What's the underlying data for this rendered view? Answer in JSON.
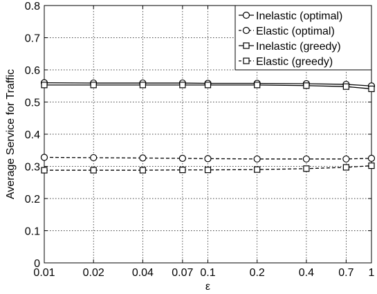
{
  "chart_data": {
    "type": "line",
    "title": "",
    "xlabel": "ε",
    "ylabel": "Average Service for Traffic",
    "x": [
      0.01,
      0.02,
      0.04,
      0.07,
      0.1,
      0.2,
      0.4,
      0.7,
      1
    ],
    "x_tick_labels": [
      "0.01",
      "0.02",
      "0.04",
      "0.07",
      "0.1",
      "0.2",
      "0.4",
      "0.7",
      "1"
    ],
    "y_ticks": [
      0,
      0.1,
      0.2,
      0.3,
      0.4,
      0.5,
      0.6,
      0.7,
      0.8
    ],
    "y_tick_labels": [
      "0",
      "0.1",
      "0.2",
      "0.3",
      "0.4",
      "0.5",
      "0.6",
      "0.7",
      "0.8"
    ],
    "ylim": [
      0,
      0.8
    ],
    "x_scale": "log",
    "grid": true,
    "legend_position": "top-right",
    "series": [
      {
        "name": "Inelastic (optimal)",
        "marker": "circle",
        "line": "solid",
        "values": [
          0.56,
          0.559,
          0.559,
          0.559,
          0.558,
          0.558,
          0.557,
          0.555,
          0.55
        ]
      },
      {
        "name": "Elastic (optimal)",
        "marker": "circle",
        "line": "dashed",
        "values": [
          0.328,
          0.327,
          0.326,
          0.325,
          0.324,
          0.323,
          0.323,
          0.323,
          0.325
        ]
      },
      {
        "name": "Inelastic (greedy)",
        "marker": "square",
        "line": "solid",
        "values": [
          0.553,
          0.553,
          0.553,
          0.553,
          0.553,
          0.553,
          0.551,
          0.548,
          0.541
        ]
      },
      {
        "name": "Elastic (greedy)",
        "marker": "square",
        "line": "dashed",
        "values": [
          0.288,
          0.288,
          0.288,
          0.289,
          0.289,
          0.29,
          0.293,
          0.297,
          0.302
        ]
      }
    ]
  }
}
